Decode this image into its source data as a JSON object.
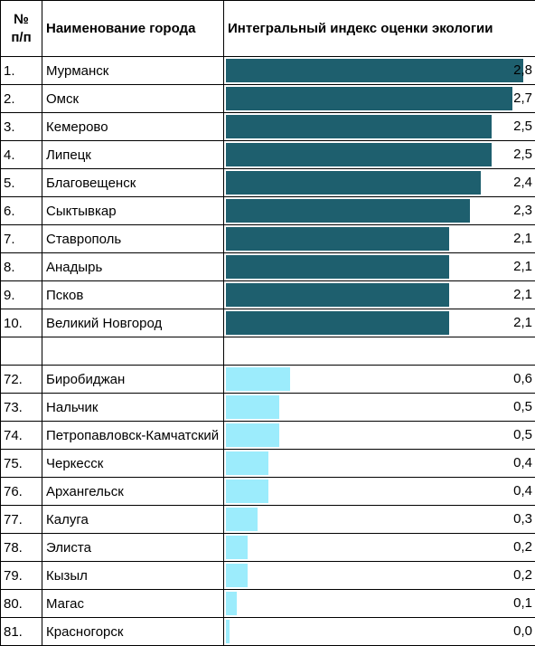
{
  "header": {
    "num_line1": "№",
    "num_line2": "п/п",
    "city": "Наименование города",
    "index": "Интегральный индекс оценки экологии"
  },
  "colors": {
    "top": "#1e5f6e",
    "bottom": "#9cecfc"
  },
  "chart_data": {
    "type": "bar",
    "orientation": "horizontal",
    "title": "",
    "xlabel": "",
    "ylabel": "",
    "xlim": [
      0,
      2.8
    ],
    "top_group": {
      "color": "#1e5f6e",
      "rows": [
        {
          "n": "1.",
          "city": "Мурманск",
          "value": 2.8,
          "label": "2,8"
        },
        {
          "n": "2.",
          "city": "Омск",
          "value": 2.7,
          "label": "2,7"
        },
        {
          "n": "3.",
          "city": "Кемерово",
          "value": 2.5,
          "label": "2,5"
        },
        {
          "n": "4.",
          "city": "Липецк",
          "value": 2.5,
          "label": "2,5"
        },
        {
          "n": "5.",
          "city": "Благовещенск",
          "value": 2.4,
          "label": "2,4"
        },
        {
          "n": "6.",
          "city": "Сыктывкар",
          "value": 2.3,
          "label": "2,3"
        },
        {
          "n": "7.",
          "city": "Ставрополь",
          "value": 2.1,
          "label": "2,1"
        },
        {
          "n": "8.",
          "city": "Анадырь",
          "value": 2.1,
          "label": "2,1"
        },
        {
          "n": "9.",
          "city": "Псков",
          "value": 2.1,
          "label": "2,1"
        },
        {
          "n": "10.",
          "city": "Великий Новгород",
          "value": 2.1,
          "label": "2,1"
        }
      ]
    },
    "bottom_group": {
      "color": "#9cecfc",
      "rows": [
        {
          "n": "72.",
          "city": "Биробиджан",
          "value": 0.6,
          "label": "0,6"
        },
        {
          "n": "73.",
          "city": "Нальчик",
          "value": 0.5,
          "label": "0,5"
        },
        {
          "n": "74.",
          "city": "Петропавловск-Камчатский",
          "value": 0.5,
          "label": "0,5"
        },
        {
          "n": "75.",
          "city": "Черкесск",
          "value": 0.4,
          "label": "0,4"
        },
        {
          "n": "76.",
          "city": "Архангельск",
          "value": 0.4,
          "label": "0,4"
        },
        {
          "n": "77.",
          "city": "Калуга",
          "value": 0.3,
          "label": "0,3"
        },
        {
          "n": "78.",
          "city": "Элиста",
          "value": 0.2,
          "label": "0,2"
        },
        {
          "n": "79.",
          "city": "Кызыл",
          "value": 0.2,
          "label": "0,2"
        },
        {
          "n": "80.",
          "city": "Магас",
          "value": 0.1,
          "label": "0,1"
        },
        {
          "n": "81.",
          "city": "Красногорск",
          "value": 0.0,
          "label": "0,0"
        }
      ]
    }
  }
}
